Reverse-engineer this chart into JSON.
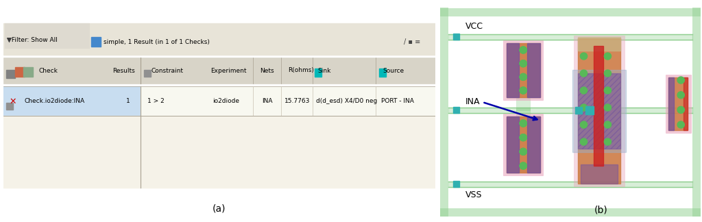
{
  "fig_width": 10.24,
  "fig_height": 3.24,
  "dpi": 100,
  "bg_color": "#ffffff",
  "panel_a": {
    "label": "(a)",
    "bg_color": "#f5f2e8",
    "toolbar_bg": "#e8e4d8",
    "toolbar_popup_bg": "#dedad0",
    "header_bg": "#d8d4c8",
    "row_bg_selected": "#c8ddf0",
    "row_bg_empty": "#f5f2e8",
    "border_color": "#a8a090",
    "text_color": "#000000",
    "error_color": "#cc0000",
    "cyan_color": "#00b8b8",
    "filter_text": "Filter: Show All",
    "simple_text": "simple, 1 Result (in 1 of 1 Checks)",
    "row_check": "Check.io2diode:INA",
    "row_results": "1",
    "row_constraint": "1 > 2",
    "row_experiment": "io2diode",
    "row_nets": "INA",
    "row_rohms": "15.7763",
    "row_sink": "d(d_esd) X4/D0 neg",
    "row_source": "PORT - INA"
  },
  "panel_b": {
    "label": "(b)",
    "vcc_label": "VCC",
    "vss_label": "VSS",
    "ina_label": "INA",
    "arrow_color": "#0000aa",
    "bg": "#ffffff",
    "outer_border": "#7dc87d",
    "inner_border": "#7dc87d",
    "hatch_color": "#90d090",
    "bus_color": "#90d090",
    "orange": "#cc7a40",
    "pink": "#e8a0b8",
    "purple": "#7050a0",
    "green_dot": "#58b858",
    "red": "#cc2020",
    "blue_gray": "#9ab0cc",
    "cyan": "#30b0b0",
    "tan": "#c8b888"
  }
}
